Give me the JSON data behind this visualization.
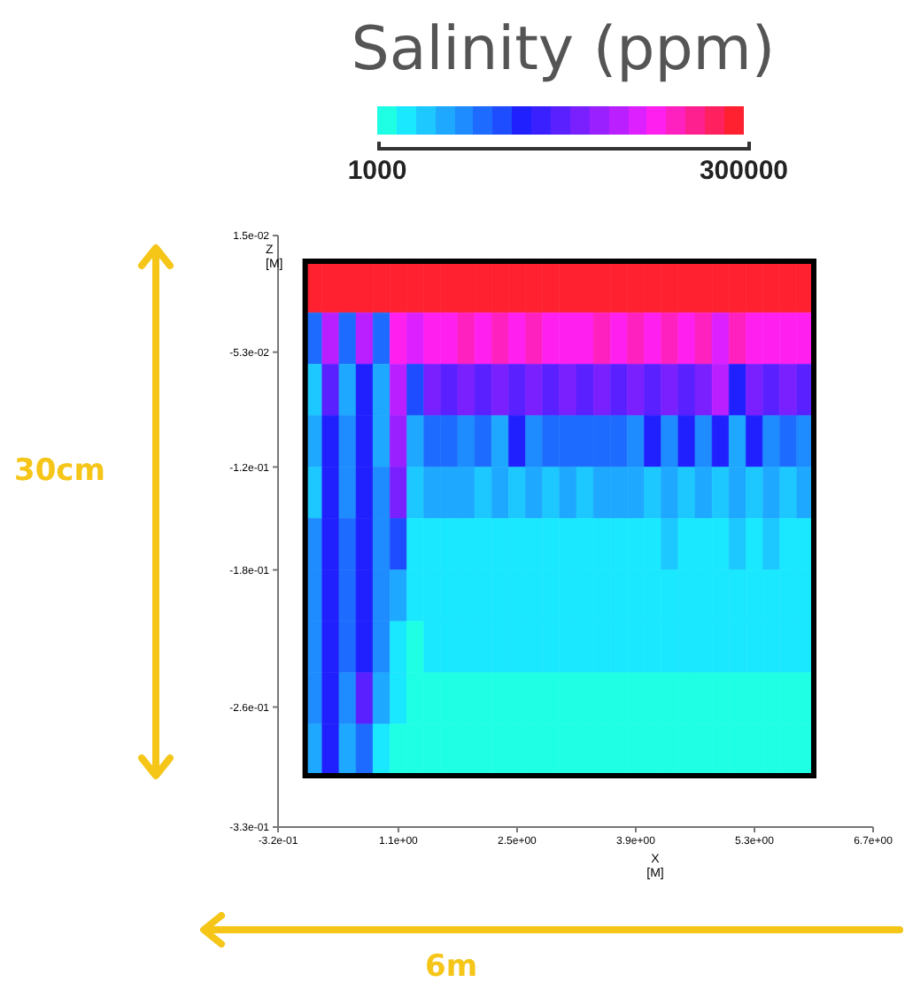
{
  "chart_data": {
    "type": "heatmap",
    "title": "Salinity (ppm)",
    "xlabel": "X [M]",
    "ylabel": "Z [M]",
    "annotations": [
      "30cm",
      "6m"
    ],
    "x": [
      0.1,
      0.3,
      0.5,
      0.7,
      0.9,
      1.1,
      1.3,
      1.5,
      1.7,
      1.9,
      2.1,
      2.3,
      2.5,
      2.7,
      2.9,
      3.1,
      3.3,
      3.5,
      3.7,
      3.9,
      4.1,
      4.3,
      4.5,
      4.7,
      4.9,
      5.1,
      5.3,
      5.5,
      5.7,
      5.9
    ],
    "y": [
      -0.015,
      -0.045,
      -0.075,
      -0.105,
      -0.135,
      -0.165,
      -0.195,
      -0.225,
      -0.255,
      -0.285
    ],
    "xlim": [
      -0.32,
      6.7
    ],
    "xticks": [
      {
        "value": -0.32,
        "label": "-3.2e-01"
      },
      {
        "value": 1.1,
        "label": "1.1e+00"
      },
      {
        "value": 2.5,
        "label": "2.5e+00"
      },
      {
        "value": 3.9,
        "label": "3.9e+00"
      },
      {
        "value": 5.3,
        "label": "5.3e+00"
      },
      {
        "value": 6.7,
        "label": "6.7e+00"
      }
    ],
    "ylim": [
      -0.33,
      0.015
    ],
    "yticks": [
      {
        "value": 0.015,
        "label": "1.5e-02"
      },
      {
        "value": -0.053,
        "label": "-5.3e-02"
      },
      {
        "value": -0.12,
        "label": "-1.2e-01"
      },
      {
        "value": -0.18,
        "label": "-1.8e-01"
      },
      {
        "value": -0.26,
        "label": "-2.6e-01"
      },
      {
        "value": -0.33,
        "label": "-3.3e-01"
      }
    ],
    "clim": [
      1000,
      300000
    ],
    "cticks": [
      1000,
      300000
    ],
    "colors": [
      "#1effe4",
      "#1ae8ff",
      "#1cc8ff",
      "#1ea8ff",
      "#1e8cff",
      "#1e6cff",
      "#1e4cff",
      "#2020ff",
      "#3a20ff",
      "#5a20ff",
      "#7a20ff",
      "#9a20ff",
      "#ba20ff",
      "#dc20ff",
      "#ff20f0",
      "#ff20c0",
      "#ff2090",
      "#ff2060",
      "#ff2030"
    ],
    "cells": [
      [
        292000,
        292000,
        292000,
        292000,
        292000,
        292000,
        292000,
        292000,
        292000,
        292000,
        292000,
        292000,
        292000,
        292000,
        292000,
        292000,
        292000,
        292000,
        292000,
        292000,
        292000,
        292000,
        292000,
        292000,
        292000,
        292000,
        292000,
        292000,
        292000,
        292000
      ],
      [
        88000,
        198000,
        88000,
        198000,
        88000,
        229000,
        213000,
        229000,
        229000,
        245000,
        229000,
        245000,
        229000,
        245000,
        229000,
        229000,
        229000,
        245000,
        229000,
        245000,
        229000,
        245000,
        229000,
        245000,
        213000,
        245000,
        229000,
        229000,
        229000,
        229000
      ],
      [
        40000,
        150000,
        56000,
        119000,
        56000,
        198000,
        103000,
        166000,
        150000,
        166000,
        150000,
        166000,
        150000,
        166000,
        150000,
        166000,
        150000,
        166000,
        150000,
        166000,
        150000,
        166000,
        150000,
        166000,
        198000,
        119000,
        166000,
        150000,
        166000,
        150000
      ],
      [
        56000,
        119000,
        72000,
        119000,
        56000,
        182000,
        56000,
        88000,
        88000,
        72000,
        88000,
        56000,
        119000,
        72000,
        88000,
        88000,
        88000,
        88000,
        88000,
        72000,
        119000,
        72000,
        119000,
        72000,
        119000,
        56000,
        119000,
        72000,
        88000,
        72000
      ],
      [
        40000,
        119000,
        72000,
        119000,
        72000,
        166000,
        40000,
        56000,
        56000,
        56000,
        40000,
        56000,
        40000,
        56000,
        40000,
        56000,
        40000,
        56000,
        56000,
        56000,
        40000,
        56000,
        40000,
        56000,
        40000,
        56000,
        40000,
        56000,
        40000,
        56000
      ],
      [
        72000,
        119000,
        88000,
        119000,
        72000,
        103000,
        25000,
        25000,
        25000,
        25000,
        25000,
        25000,
        25000,
        25000,
        25000,
        25000,
        25000,
        25000,
        25000,
        25000,
        25000,
        40000,
        25000,
        25000,
        25000,
        40000,
        25000,
        40000,
        25000,
        25000
      ],
      [
        72000,
        119000,
        88000,
        119000,
        72000,
        56000,
        25000,
        25000,
        25000,
        25000,
        25000,
        25000,
        25000,
        25000,
        25000,
        25000,
        25000,
        25000,
        25000,
        25000,
        25000,
        25000,
        25000,
        25000,
        25000,
        25000,
        25000,
        25000,
        25000,
        25000
      ],
      [
        72000,
        119000,
        88000,
        119000,
        72000,
        25000,
        9000,
        25000,
        25000,
        25000,
        25000,
        25000,
        25000,
        25000,
        25000,
        25000,
        25000,
        25000,
        25000,
        25000,
        25000,
        25000,
        25000,
        25000,
        25000,
        25000,
        25000,
        25000,
        25000,
        25000
      ],
      [
        72000,
        119000,
        72000,
        150000,
        56000,
        25000,
        9000,
        9000,
        9000,
        9000,
        9000,
        9000,
        9000,
        9000,
        9000,
        9000,
        9000,
        9000,
        9000,
        9000,
        9000,
        9000,
        9000,
        9000,
        9000,
        9000,
        9000,
        9000,
        9000,
        9000
      ],
      [
        56000,
        119000,
        56000,
        88000,
        25000,
        9000,
        9000,
        9000,
        9000,
        9000,
        9000,
        9000,
        9000,
        9000,
        9000,
        9000,
        9000,
        9000,
        9000,
        9000,
        9000,
        9000,
        9000,
        9000,
        9000,
        9000,
        9000,
        9000,
        9000,
        9000
      ]
    ]
  }
}
